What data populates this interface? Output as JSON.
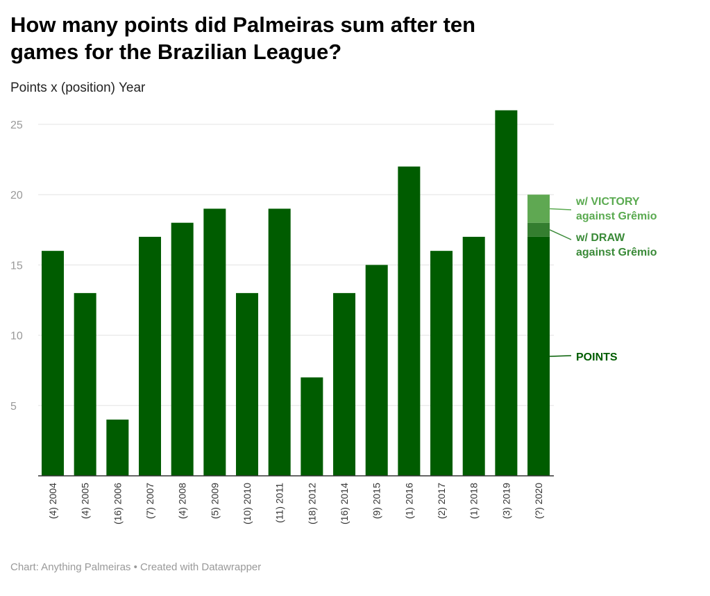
{
  "header": {
    "title": "How many points did Palmeiras sum after ten games for the Brazilian League?",
    "subtitle": "Points x (position) Year"
  },
  "footer": {
    "text": "Chart: Anything Palmeiras • Created with Datawrapper"
  },
  "chart_data": {
    "type": "bar",
    "stacked": true,
    "categories": [
      "(4) 2004",
      "(4) 2005",
      "(16) 2006",
      "(7) 2007",
      "(4) 2008",
      "(5) 2009",
      "(10) 2010",
      "(11) 2011",
      "(18) 2012",
      "(16) 2014",
      "(9) 2015",
      "(1) 2016",
      "(2) 2017",
      "(1) 2018",
      "(3) 2019",
      "(?) 2020"
    ],
    "series": [
      {
        "name": "POINTS",
        "color": "#005c00",
        "values": [
          16,
          13,
          4,
          17,
          18,
          19,
          13,
          19,
          7,
          13,
          15,
          22,
          16,
          17,
          26,
          17
        ]
      },
      {
        "name": "w/ DRAW against Grêmio",
        "color": "#347e2f",
        "values": [
          0,
          0,
          0,
          0,
          0,
          0,
          0,
          0,
          0,
          0,
          0,
          0,
          0,
          0,
          0,
          1
        ]
      },
      {
        "name": "w/ VICTORY against Grêmio",
        "color": "#5fa852",
        "values": [
          0,
          0,
          0,
          0,
          0,
          0,
          0,
          0,
          0,
          0,
          0,
          0,
          0,
          0,
          0,
          2
        ]
      }
    ],
    "annotations": [
      {
        "text": [
          "w/ VICTORY",
          "against Grêmio"
        ],
        "color": "#5aaa50",
        "series": 2
      },
      {
        "text": [
          "w/ DRAW",
          "against Grêmio"
        ],
        "color": "#3a8a38",
        "series": 1
      },
      {
        "text": [
          "POINTS"
        ],
        "color": "#005c00",
        "series": 0
      }
    ],
    "yticks": [
      5,
      10,
      15,
      20,
      25
    ],
    "ylim": [
      0,
      25
    ],
    "grid": true
  }
}
